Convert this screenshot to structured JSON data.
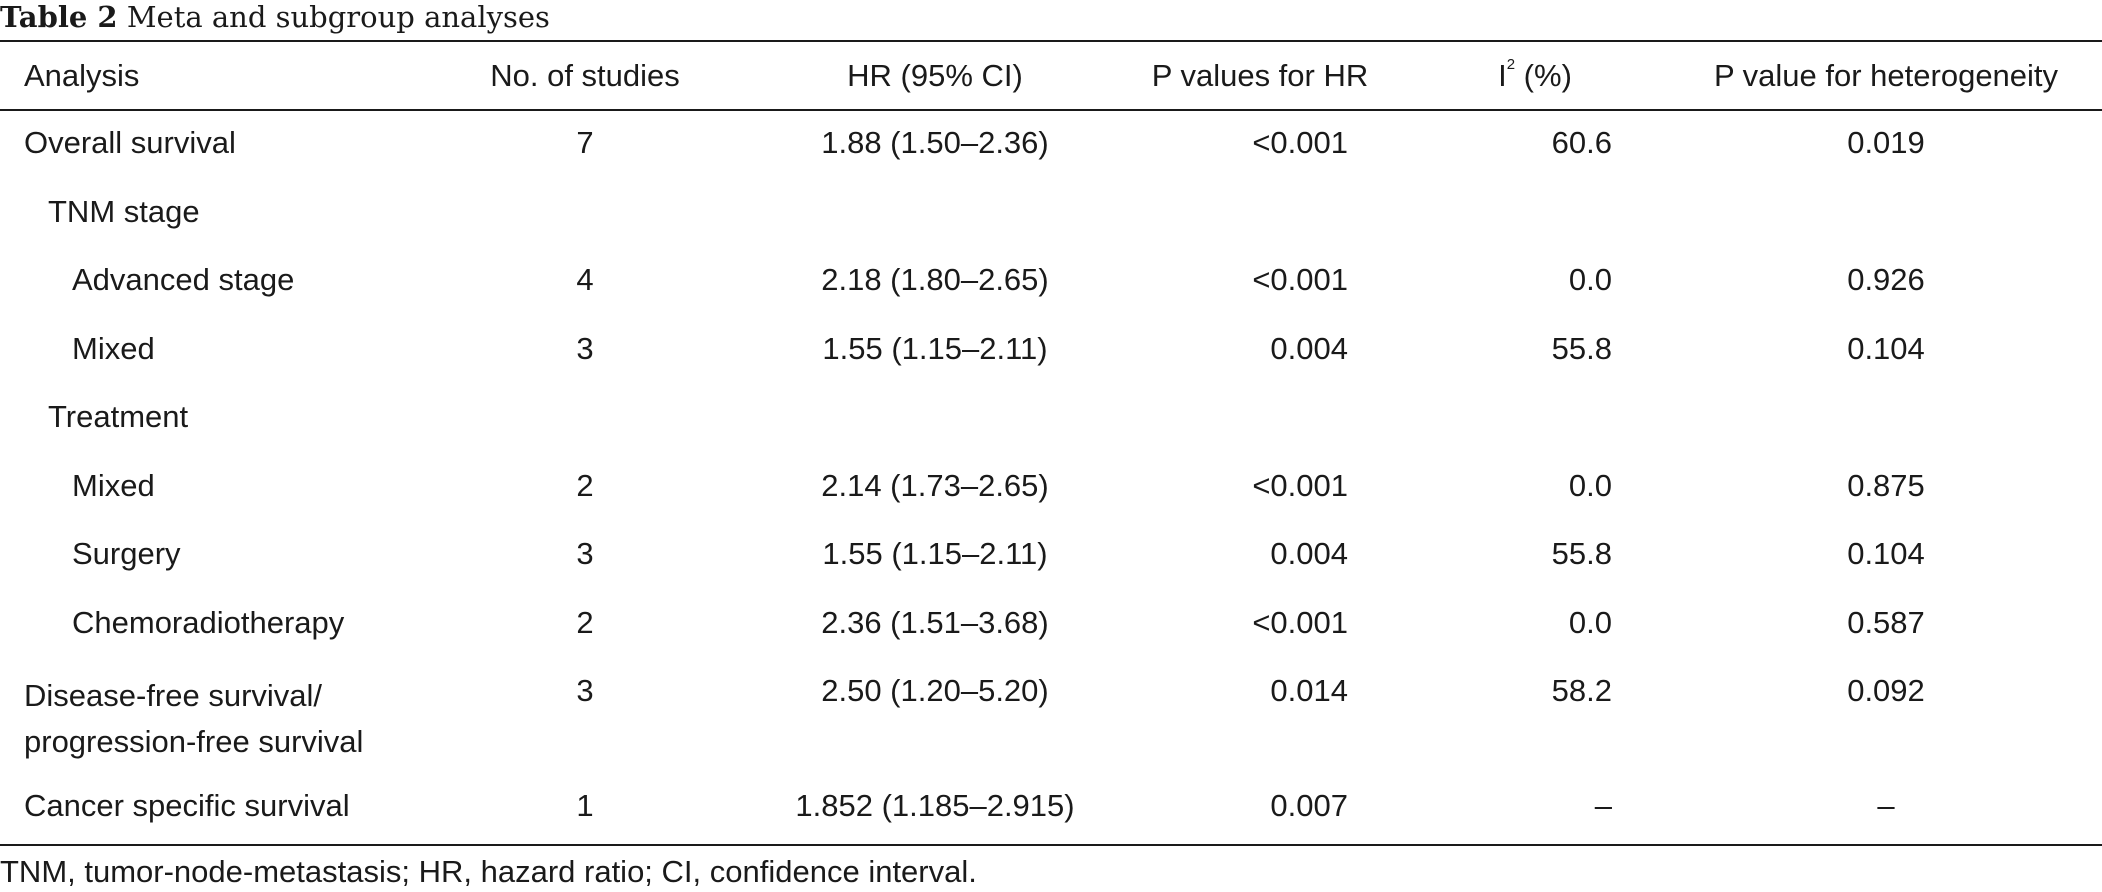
{
  "caption": {
    "label": "Table 2",
    "text": "Meta and subgroup analyses"
  },
  "headers": {
    "analysis": "Analysis",
    "studies": "No. of studies",
    "hr": "HR (95% CI)",
    "p_hr": "P values for HR",
    "i2_base": "I",
    "i2_sup": "2",
    "i2_unit": " (%)",
    "p_het": "P value for heterogeneity"
  },
  "rows": [
    {
      "analysis": "Overall survival",
      "studies": "7",
      "hr": "1.88 (1.50–2.36)",
      "p_hr": "<0.001",
      "i2": "60.6",
      "p_het": "0.019"
    },
    {
      "analysis": "TNM stage",
      "studies": "",
      "hr": "",
      "p_hr": "",
      "i2": "",
      "p_het": ""
    },
    {
      "analysis": "Advanced stage",
      "studies": "4",
      "hr": "2.18 (1.80–2.65)",
      "p_hr": "<0.001",
      "i2": "0.0",
      "p_het": "0.926"
    },
    {
      "analysis": "Mixed",
      "studies": "3",
      "hr": "1.55 (1.15–2.11)",
      "p_hr": "0.004",
      "i2": "55.8",
      "p_het": "0.104"
    },
    {
      "analysis": "Treatment",
      "studies": "",
      "hr": "",
      "p_hr": "",
      "i2": "",
      "p_het": ""
    },
    {
      "analysis": "Mixed",
      "studies": "2",
      "hr": "2.14 (1.73–2.65)",
      "p_hr": "<0.001",
      "i2": "0.0",
      "p_het": "0.875"
    },
    {
      "analysis": "Surgery",
      "studies": "3",
      "hr": "1.55 (1.15–2.11)",
      "p_hr": "0.004",
      "i2": "55.8",
      "p_het": "0.104"
    },
    {
      "analysis": "Chemoradiotherapy",
      "studies": "2",
      "hr": "2.36 (1.51–3.68)",
      "p_hr": "<0.001",
      "i2": "0.0",
      "p_het": "0.587"
    },
    {
      "analysis_line1": "Disease-free survival/",
      "analysis_line2": "progression-free survival",
      "studies": "3",
      "hr": "2.50 (1.20–5.20)",
      "p_hr": "0.014",
      "i2": "58.2",
      "p_het": "0.092"
    },
    {
      "analysis": "Cancer specific survival",
      "studies": "1",
      "hr": "1.852 (1.185–2.915)",
      "p_hr": "0.007",
      "i2": "–",
      "p_het": "–"
    }
  ],
  "footnote": "TNM, tumor-node-metastasis; HR, hazard ratio; CI, confidence interval."
}
